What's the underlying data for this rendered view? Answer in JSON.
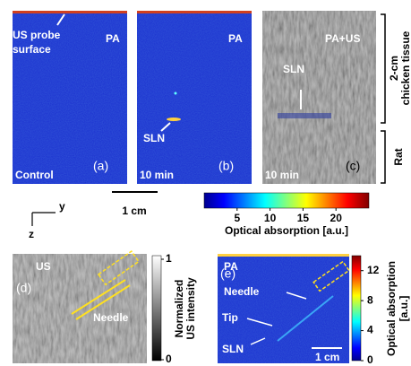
{
  "panels": {
    "a": {
      "label": "(a)",
      "probe_line1": "US probe",
      "probe_line2": "surface",
      "mode": "PA",
      "time": "Control"
    },
    "b": {
      "label": "(b)",
      "mode": "PA",
      "time": "10 min",
      "node": "SLN"
    },
    "c": {
      "label": "(c)",
      "mode": "PA+US",
      "time": "10 min",
      "node": "SLN"
    },
    "d": {
      "label": "(d)",
      "mode": "US",
      "needle": "Needle"
    },
    "e": {
      "label": "(e)",
      "mode": "PA",
      "needle": "Needle",
      "tip": "Tip",
      "node": "SLN",
      "scale": "1 cm"
    }
  },
  "side_labels": {
    "tissue_line1": "2-cm",
    "tissue_line2": "chicken tissue",
    "rat": "Rat"
  },
  "axes": {
    "y": "y",
    "z": "z"
  },
  "scale_bar": "1 cm",
  "colorbar_top": {
    "label": "Optical absorption [a.u.]",
    "lim": [
      0,
      25
    ],
    "ticks": [
      5,
      10,
      15,
      20
    ]
  },
  "colorbar_us": {
    "label_line1": "Normalized",
    "label_line2": "US intensity",
    "lim": [
      0,
      1
    ],
    "ticks": [
      0,
      1
    ]
  },
  "colorbar_pa": {
    "label_line1": "Optical absorption",
    "label_line2": "[a.u.]",
    "lim": [
      0,
      14
    ],
    "ticks": [
      0,
      4,
      8,
      12
    ]
  }
}
